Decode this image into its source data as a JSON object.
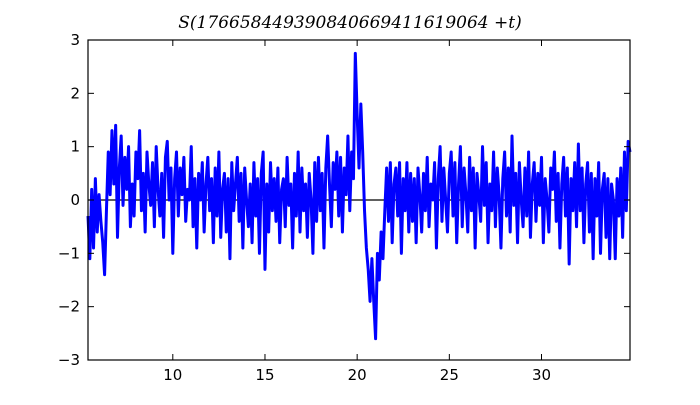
{
  "chart_data": {
    "type": "line",
    "title": "S(17665844939084066941161906 4+t)",
    "title_exact": "S(176658449390840669411619064 +t)",
    "xlabel": "",
    "ylabel": "",
    "xlim": [
      5.4,
      34.8
    ],
    "ylim": [
      -3,
      3
    ],
    "x_ticks": [
      10,
      15,
      20,
      25,
      30
    ],
    "y_ticks": [
      -3,
      -2,
      -1,
      0,
      1,
      2,
      3
    ],
    "x_tick_labels": [
      "10",
      "15",
      "20",
      "25",
      "30"
    ],
    "y_tick_labels": [
      "−3",
      "−2",
      "−1",
      "0",
      "1",
      "2",
      "3"
    ],
    "grid": false,
    "legend": "none",
    "series_color": "#0000ff",
    "zero_line_color": "#000000",
    "series": [
      {
        "points": [
          [
            5.4,
            -0.3
          ],
          [
            5.5,
            -1.1
          ],
          [
            5.6,
            0.2
          ],
          [
            5.7,
            -0.9
          ],
          [
            5.8,
            0.4
          ],
          [
            5.9,
            -0.6
          ],
          [
            6.0,
            0.1
          ],
          [
            6.1,
            -0.4
          ],
          [
            6.2,
            -0.8
          ],
          [
            6.3,
            -1.4
          ],
          [
            6.4,
            -0.2
          ],
          [
            6.5,
            0.9
          ],
          [
            6.6,
            0.1
          ],
          [
            6.7,
            1.3
          ],
          [
            6.8,
            0.3
          ],
          [
            6.9,
            1.4
          ],
          [
            7.0,
            -0.7
          ],
          [
            7.1,
            0.6
          ],
          [
            7.2,
            1.2
          ],
          [
            7.3,
            -0.1
          ],
          [
            7.4,
            0.8
          ],
          [
            7.5,
            0.2
          ],
          [
            7.6,
            1.0
          ],
          [
            7.7,
            -0.5
          ],
          [
            7.8,
            0.3
          ],
          [
            7.9,
            -0.3
          ],
          [
            8.0,
            0.9
          ],
          [
            8.1,
            0.4
          ],
          [
            8.2,
            1.3
          ],
          [
            8.3,
            -0.2
          ],
          [
            8.4,
            0.5
          ],
          [
            8.5,
            -0.6
          ],
          [
            8.6,
            0.9
          ],
          [
            8.7,
            0.3
          ],
          [
            8.8,
            -0.1
          ],
          [
            8.9,
            0.7
          ],
          [
            9.0,
            -0.5
          ],
          [
            9.1,
            1.0
          ],
          [
            9.2,
            0.2
          ],
          [
            9.3,
            -0.3
          ],
          [
            9.4,
            0.5
          ],
          [
            9.5,
            -0.7
          ],
          [
            9.6,
            0.8
          ],
          [
            9.7,
            1.1
          ],
          [
            9.8,
            0.0
          ],
          [
            9.9,
            0.6
          ],
          [
            10.0,
            -1.0
          ],
          [
            10.1,
            0.4
          ],
          [
            10.2,
            0.9
          ],
          [
            10.3,
            -0.3
          ],
          [
            10.4,
            0.6
          ],
          [
            10.5,
            0.1
          ],
          [
            10.6,
            0.8
          ],
          [
            10.7,
            -0.4
          ],
          [
            10.8,
            0.2
          ],
          [
            10.9,
            0.0
          ],
          [
            11.0,
            1.0
          ],
          [
            11.1,
            -0.5
          ],
          [
            11.2,
            0.4
          ],
          [
            11.3,
            -0.9
          ],
          [
            11.4,
            0.5
          ],
          [
            11.5,
            0.0
          ],
          [
            11.6,
            0.7
          ],
          [
            11.7,
            -0.6
          ],
          [
            11.8,
            0.3
          ],
          [
            11.9,
            0.8
          ],
          [
            12.0,
            -0.2
          ],
          [
            12.1,
            0.4
          ],
          [
            12.2,
            -0.8
          ],
          [
            12.3,
            0.6
          ],
          [
            12.4,
            -0.3
          ],
          [
            12.5,
            0.9
          ],
          [
            12.6,
            -0.7
          ],
          [
            12.7,
            0.2
          ],
          [
            12.8,
            0.5
          ],
          [
            12.9,
            -0.6
          ],
          [
            13.0,
            0.4
          ],
          [
            13.1,
            -1.1
          ],
          [
            13.2,
            0.7
          ],
          [
            13.3,
            -0.2
          ],
          [
            13.4,
            0.3
          ],
          [
            13.5,
            0.8
          ],
          [
            13.6,
            -0.4
          ],
          [
            13.7,
            0.5
          ],
          [
            13.8,
            -0.9
          ],
          [
            13.9,
            0.6
          ],
          [
            14.0,
            0.0
          ],
          [
            14.1,
            -0.5
          ],
          [
            14.2,
            0.3
          ],
          [
            14.3,
            -0.8
          ],
          [
            14.4,
            0.7
          ],
          [
            14.5,
            -0.3
          ],
          [
            14.6,
            0.4
          ],
          [
            14.7,
            -1.0
          ],
          [
            14.8,
            0.5
          ],
          [
            14.9,
            0.9
          ],
          [
            15.0,
            -1.3
          ],
          [
            15.1,
            0.3
          ],
          [
            15.2,
            -0.6
          ],
          [
            15.3,
            0.7
          ],
          [
            15.4,
            -0.2
          ],
          [
            15.5,
            0.4
          ],
          [
            15.6,
            -0.4
          ],
          [
            15.7,
            0.6
          ],
          [
            15.8,
            -0.8
          ],
          [
            15.9,
            0.2
          ],
          [
            16.0,
            0.4
          ],
          [
            16.1,
            -0.5
          ],
          [
            16.2,
            0.8
          ],
          [
            16.3,
            -0.1
          ],
          [
            16.4,
            0.3
          ],
          [
            16.5,
            -0.9
          ],
          [
            16.6,
            0.5
          ],
          [
            16.7,
            -0.3
          ],
          [
            16.8,
            0.9
          ],
          [
            16.9,
            -0.6
          ],
          [
            17.0,
            0.6
          ],
          [
            17.1,
            -0.2
          ],
          [
            17.2,
            0.3
          ],
          [
            17.3,
            -0.7
          ],
          [
            17.4,
            0.5
          ],
          [
            17.5,
            0.0
          ],
          [
            17.6,
            -1.0
          ],
          [
            17.7,
            0.7
          ],
          [
            17.8,
            -0.4
          ],
          [
            17.9,
            0.8
          ],
          [
            18.0,
            -0.2
          ],
          [
            18.1,
            0.5
          ],
          [
            18.2,
            -0.9
          ],
          [
            18.3,
            0.6
          ],
          [
            18.4,
            1.2
          ],
          [
            18.5,
            0.3
          ],
          [
            18.6,
            -0.5
          ],
          [
            18.7,
            0.7
          ],
          [
            18.8,
            0.2
          ],
          [
            18.9,
            0.9
          ],
          [
            19.0,
            -0.3
          ],
          [
            19.1,
            0.8
          ],
          [
            19.2,
            -0.6
          ],
          [
            19.3,
            0.6
          ],
          [
            19.4,
            0.1
          ],
          [
            19.5,
            1.2
          ],
          [
            19.6,
            -0.2
          ],
          [
            19.7,
            0.9
          ],
          [
            19.8,
            0.4
          ],
          [
            19.9,
            2.75
          ],
          [
            20.0,
            1.6
          ],
          [
            20.1,
            0.6
          ],
          [
            20.2,
            1.8
          ],
          [
            20.3,
            0.9
          ],
          [
            20.4,
            -0.2
          ],
          [
            20.5,
            -0.9
          ],
          [
            20.6,
            -1.3
          ],
          [
            20.7,
            -1.9
          ],
          [
            20.8,
            -1.1
          ],
          [
            20.9,
            -1.9
          ],
          [
            21.0,
            -2.6
          ],
          [
            21.1,
            -1.0
          ],
          [
            21.2,
            -1.5
          ],
          [
            21.3,
            -0.6
          ],
          [
            21.4,
            -1.1
          ],
          [
            21.5,
            -0.2
          ],
          [
            21.6,
            0.6
          ],
          [
            21.7,
            -0.4
          ],
          [
            21.8,
            0.7
          ],
          [
            21.9,
            -0.8
          ],
          [
            22.0,
            0.3
          ],
          [
            22.1,
            0.6
          ],
          [
            22.2,
            -0.3
          ],
          [
            22.3,
            0.7
          ],
          [
            22.4,
            -1.0
          ],
          [
            22.5,
            0.4
          ],
          [
            22.6,
            -0.2
          ],
          [
            22.7,
            0.7
          ],
          [
            22.8,
            -0.6
          ],
          [
            22.9,
            0.5
          ],
          [
            23.0,
            -0.4
          ],
          [
            23.1,
            0.4
          ],
          [
            23.2,
            -0.8
          ],
          [
            23.3,
            0.6
          ],
          [
            23.4,
            0.1
          ],
          [
            23.5,
            -0.6
          ],
          [
            23.6,
            0.5
          ],
          [
            23.7,
            -0.2
          ],
          [
            23.8,
            0.8
          ],
          [
            23.9,
            -0.5
          ],
          [
            24.0,
            0.3
          ],
          [
            24.1,
            0.0
          ],
          [
            24.2,
            0.7
          ],
          [
            24.3,
            -0.9
          ],
          [
            24.4,
            0.4
          ],
          [
            24.5,
            1.0
          ],
          [
            24.6,
            -0.4
          ],
          [
            24.7,
            0.6
          ],
          [
            24.8,
            0.0
          ],
          [
            24.9,
            -0.6
          ],
          [
            25.0,
            0.5
          ],
          [
            25.1,
            0.9
          ],
          [
            25.2,
            -0.3
          ],
          [
            25.3,
            0.7
          ],
          [
            25.4,
            -0.8
          ],
          [
            25.5,
            0.3
          ],
          [
            25.6,
            1.0
          ],
          [
            25.7,
            -0.5
          ],
          [
            25.8,
            0.6
          ],
          [
            25.9,
            0.1
          ],
          [
            26.0,
            -0.6
          ],
          [
            26.1,
            0.8
          ],
          [
            26.2,
            -0.2
          ],
          [
            26.3,
            0.6
          ],
          [
            26.4,
            -0.9
          ],
          [
            26.5,
            0.5
          ],
          [
            26.6,
            0.1
          ],
          [
            26.7,
            -0.4
          ],
          [
            26.8,
            1.0
          ],
          [
            26.9,
            -0.1
          ],
          [
            27.0,
            0.7
          ],
          [
            27.1,
            -0.8
          ],
          [
            27.2,
            0.3
          ],
          [
            27.3,
            -0.2
          ],
          [
            27.4,
            0.9
          ],
          [
            27.5,
            -0.5
          ],
          [
            27.6,
            0.6
          ],
          [
            27.7,
            0.1
          ],
          [
            27.8,
            -0.9
          ],
          [
            27.9,
            0.4
          ],
          [
            28.0,
            0.9
          ],
          [
            28.1,
            -0.3
          ],
          [
            28.2,
            0.6
          ],
          [
            28.3,
            -0.6
          ],
          [
            28.4,
            1.2
          ],
          [
            28.5,
            -0.1
          ],
          [
            28.6,
            0.5
          ],
          [
            28.7,
            -0.8
          ],
          [
            28.8,
            0.7
          ],
          [
            28.9,
            0.0
          ],
          [
            29.0,
            -0.5
          ],
          [
            29.1,
            0.6
          ],
          [
            29.2,
            -0.3
          ],
          [
            29.3,
            0.9
          ],
          [
            29.4,
            -0.7
          ],
          [
            29.5,
            0.3
          ],
          [
            29.6,
            0.7
          ],
          [
            29.7,
            -0.4
          ],
          [
            29.8,
            0.5
          ],
          [
            29.9,
            -0.1
          ],
          [
            30.0,
            0.8
          ],
          [
            30.1,
            -0.8
          ],
          [
            30.2,
            0.4
          ],
          [
            30.3,
            0.0
          ],
          [
            30.4,
            -0.6
          ],
          [
            30.5,
            0.6
          ],
          [
            30.6,
            0.2
          ],
          [
            30.7,
            0.9
          ],
          [
            30.8,
            -0.4
          ],
          [
            30.9,
            0.5
          ],
          [
            31.0,
            -0.9
          ],
          [
            31.1,
            0.3
          ],
          [
            31.2,
            0.8
          ],
          [
            31.3,
            -0.3
          ],
          [
            31.4,
            0.6
          ],
          [
            31.5,
            -1.2
          ],
          [
            31.6,
            0.4
          ],
          [
            31.7,
            -0.2
          ],
          [
            31.8,
            0.7
          ],
          [
            31.9,
            -0.5
          ],
          [
            32.0,
            1.05
          ],
          [
            32.1,
            -0.2
          ],
          [
            32.2,
            0.6
          ],
          [
            32.3,
            -0.8
          ],
          [
            32.4,
            0.3
          ],
          [
            32.5,
            0.7
          ],
          [
            32.6,
            -0.6
          ],
          [
            32.7,
            0.5
          ],
          [
            32.8,
            -1.1
          ],
          [
            32.9,
            0.4
          ],
          [
            33.0,
            -0.3
          ],
          [
            33.1,
            0.7
          ],
          [
            33.2,
            -1.0
          ],
          [
            33.3,
            0.2
          ],
          [
            33.4,
            0.5
          ],
          [
            33.5,
            -0.7
          ],
          [
            33.6,
            0.4
          ],
          [
            33.7,
            -1.1
          ],
          [
            33.8,
            0.3
          ],
          [
            33.9,
            0.0
          ],
          [
            34.0,
            -1.1
          ],
          [
            34.1,
            0.4
          ],
          [
            34.2,
            -0.3
          ],
          [
            34.3,
            0.6
          ],
          [
            34.4,
            -0.7
          ],
          [
            34.5,
            0.9
          ],
          [
            34.6,
            -0.2
          ],
          [
            34.7,
            1.1
          ],
          [
            34.8,
            0.9
          ]
        ]
      }
    ]
  }
}
